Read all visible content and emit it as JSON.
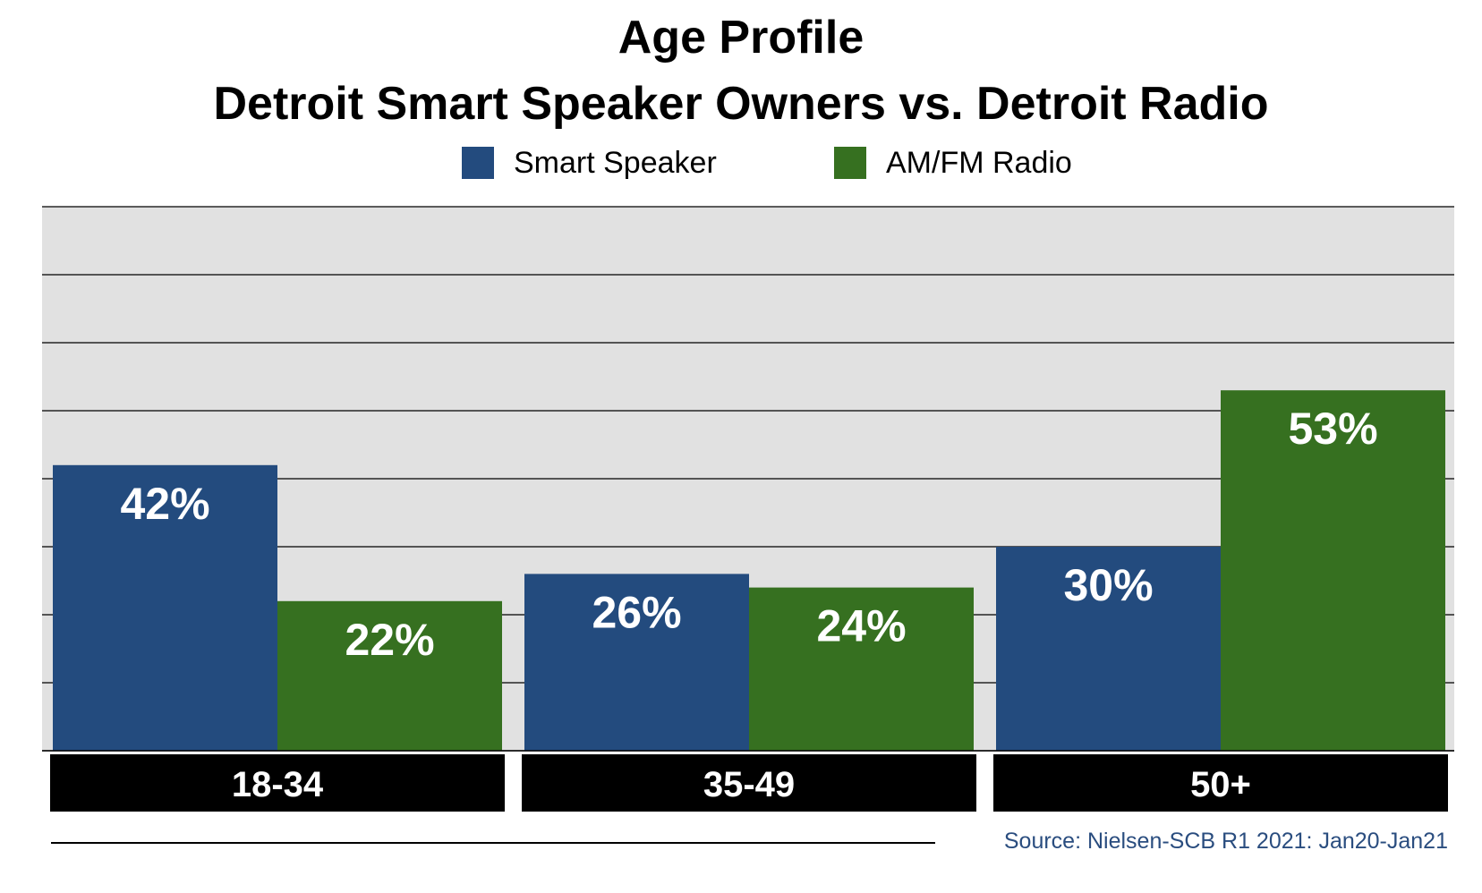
{
  "chart_data": {
    "type": "bar",
    "title": "Age Profile",
    "subtitle": "Detroit Smart Speaker Owners vs. Detroit Radio",
    "categories": [
      "18-34",
      "35-49",
      "50+"
    ],
    "series": [
      {
        "name": "Smart Speaker",
        "values": [
          42,
          26,
          30
        ],
        "labels": [
          "42%",
          "26%",
          "30%"
        ],
        "color": "#234b7e"
      },
      {
        "name": "AM/FM Radio",
        "values": [
          22,
          24,
          53
        ],
        "labels": [
          "22%",
          "24%",
          "53%"
        ],
        "color": "#367020"
      }
    ],
    "ylim": [
      0,
      80
    ],
    "gridline_step": 10,
    "grid": true,
    "legend_position": "top-center",
    "plot_background": "#e1e1e1",
    "category_label_background": "#000000"
  },
  "source": "Source: Nielsen-SCB R1 2021: Jan20-Jan21"
}
